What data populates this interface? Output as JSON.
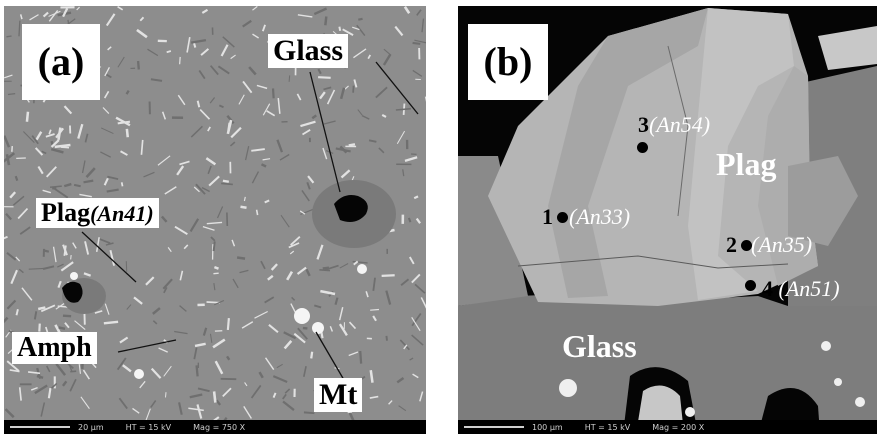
{
  "panel_a": {
    "letter": "(a)",
    "labels": {
      "glass": "Glass",
      "plag": "Plag",
      "plag_an": "(An41)",
      "amph": "Amph",
      "mt": "Mt"
    },
    "scale": {
      "length": "20 µm",
      "ht": "HT = 15 kV",
      "mag": "Mag = 750 X"
    }
  },
  "panel_b": {
    "letter": "(b)",
    "labels": {
      "plag": "Plag",
      "glass": "Glass"
    },
    "points": [
      {
        "num": "1",
        "an": "(An33)"
      },
      {
        "num": "2",
        "an": "(An35)"
      },
      {
        "num": "3",
        "an": "(An54)"
      },
      {
        "num": "4",
        "an": "(An51)"
      }
    ],
    "scale": {
      "length": "100 µm",
      "ht": "HT = 15 kV",
      "mag": "Mag = 200 X"
    }
  }
}
